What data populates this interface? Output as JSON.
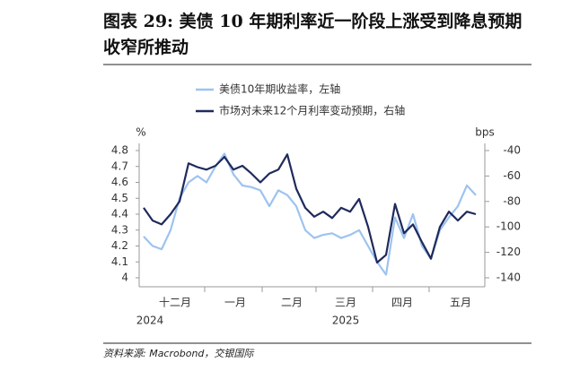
{
  "chart_data": {
    "type": "line",
    "title": "图表 29: 美债 10 年期利率近一阶段上涨受到降息预期收窄所推动",
    "y_label": "%",
    "y2_label": "bps",
    "months": [
      "十二月",
      "一月",
      "二月",
      "三月",
      "四月",
      "五月"
    ],
    "years": [
      "2024",
      "2025"
    ],
    "ylim": [
      4.0,
      4.8
    ],
    "yticks": [
      4.0,
      4.1,
      4.2,
      4.3,
      4.4,
      4.5,
      4.6,
      4.7,
      4.8
    ],
    "y2lim": [
      -140,
      -40
    ],
    "y2ticks": [
      -140,
      -120,
      -100,
      -80,
      -60,
      -40
    ],
    "series": [
      {
        "name": "美债10年期收益率，左轴",
        "color": "#9dc3f0",
        "values": [
          4.26,
          4.2,
          4.18,
          4.3,
          4.5,
          4.6,
          4.64,
          4.6,
          4.7,
          4.78,
          4.65,
          4.58,
          4.57,
          4.55,
          4.45,
          4.55,
          4.52,
          4.45,
          4.3,
          4.25,
          4.27,
          4.28,
          4.25,
          4.27,
          4.3,
          4.2,
          4.1,
          4.02,
          4.38,
          4.25,
          4.4,
          4.2,
          4.12,
          4.3,
          4.38,
          4.45,
          4.58,
          4.52
        ]
      },
      {
        "name": "市场对未来12个月利率变动预期，右轴",
        "color": "#1f2a5c",
        "axis": "y2",
        "values": [
          -85,
          -95,
          -98,
          -90,
          -80,
          -50,
          -53,
          -55,
          -52,
          -45,
          -55,
          -52,
          -58,
          -65,
          -58,
          -55,
          -43,
          -70,
          -85,
          -92,
          -88,
          -93,
          -85,
          -88,
          -78,
          -100,
          -128,
          -122,
          -82,
          -105,
          -98,
          -112,
          -125,
          -100,
          -88,
          -95,
          -88,
          -90
        ]
      }
    ],
    "source": "资料来源: Macrobond，交银国际"
  }
}
